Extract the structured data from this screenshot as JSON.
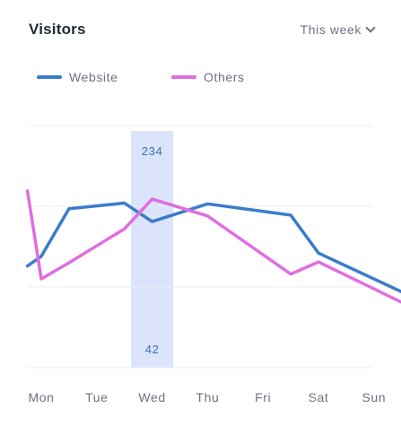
{
  "header": {
    "title": "Visitors",
    "range_label": "This week"
  },
  "colors": {
    "website": "#3a7dc9",
    "others": "#e06ee0",
    "highlight": "#dbe4fb",
    "grid": "#eceef2"
  },
  "chart_data": {
    "type": "line",
    "categories": [
      "Mon",
      "Tue",
      "Wed",
      "Thu",
      "Fri",
      "Sat",
      "Sun"
    ],
    "series": [
      {
        "name": "Website",
        "values": [
          126,
          138,
          197,
          204,
          181,
          203,
          189,
          142,
          94
        ]
      },
      {
        "name": "Others",
        "values": [
          219,
          110,
          130,
          172,
          209,
          188,
          116,
          131,
          81
        ]
      }
    ],
    "x": [
      -0.25,
      0,
      0.5,
      1.5,
      2,
      3,
      4.5,
      5,
      6.5
    ],
    "ylim": [
      0,
      300
    ],
    "grid": true,
    "legend_position": "top-left",
    "highlight": {
      "category": "Wed",
      "top_label": "234",
      "bottom_label": "42"
    }
  }
}
